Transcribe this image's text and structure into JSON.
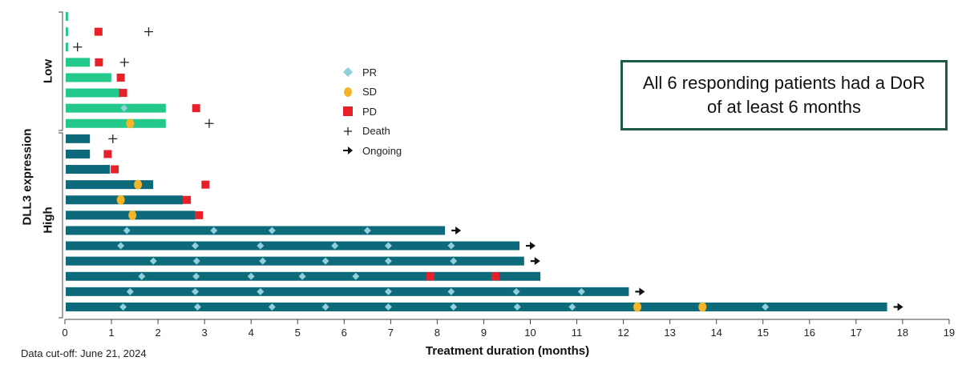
{
  "chart_data": {
    "type": "swimmer",
    "xlabel": "Treatment duration (months)",
    "ylabel": "DLL3 expression",
    "xlim": [
      0,
      19
    ],
    "x_ticks": [
      "0",
      "1",
      "2",
      "3",
      "4",
      "5",
      "6",
      "7",
      "8",
      "9",
      "10",
      "11",
      "12",
      "13",
      "14",
      "15",
      "16",
      "17",
      "18",
      "19"
    ],
    "groups": [
      {
        "label": "Low",
        "color": "#22c98a",
        "patients": [
          {
            "duration": 0.05,
            "PD": [],
            "SD": [],
            "PR": [],
            "death": null,
            "ongoing": false
          },
          {
            "duration": 0.05,
            "PD": [
              0.72
            ],
            "SD": [],
            "PR": [],
            "death": 1.8,
            "ongoing": false
          },
          {
            "duration": 0.05,
            "PD": [],
            "SD": [],
            "PR": [],
            "death": 0.27,
            "ongoing": false
          },
          {
            "duration": 0.52,
            "PD": [
              0.73
            ],
            "SD": [],
            "PR": [],
            "death": 1.28,
            "ongoing": false
          },
          {
            "duration": 0.98,
            "PD": [
              1.2
            ],
            "SD": [],
            "PR": [],
            "death": null,
            "ongoing": false
          },
          {
            "duration": 1.18,
            "PD": [
              1.25
            ],
            "SD": [],
            "PR": [],
            "death": null,
            "ongoing": false
          },
          {
            "duration": 2.15,
            "PD": [
              2.82
            ],
            "SD": [],
            "PR": [
              1.27
            ],
            "death": null,
            "ongoing": false
          },
          {
            "duration": 2.15,
            "PD": [],
            "SD": [
              1.4
            ],
            "PR": [],
            "death": 3.1,
            "ongoing": false
          }
        ]
      },
      {
        "label": "High",
        "color": "#0d6a7a",
        "patients": [
          {
            "duration": 0.52,
            "PD": [],
            "SD": [],
            "PR": [],
            "death": 1.03,
            "ongoing": false
          },
          {
            "duration": 0.52,
            "PD": [
              0.92
            ],
            "SD": [],
            "PR": [],
            "death": null,
            "ongoing": false
          },
          {
            "duration": 0.95,
            "PD": [
              1.07
            ],
            "SD": [],
            "PR": [],
            "death": null,
            "ongoing": false
          },
          {
            "duration": 1.88,
            "PD": [
              3.02
            ],
            "SD": [
              1.57
            ],
            "PR": [],
            "death": null,
            "ongoing": false
          },
          {
            "duration": 2.52,
            "PD": [
              2.62
            ],
            "SD": [
              1.2
            ],
            "PR": [],
            "death": null,
            "ongoing": false
          },
          {
            "duration": 2.78,
            "PD": [
              2.88
            ],
            "SD": [
              1.45
            ],
            "PR": [],
            "death": null,
            "ongoing": false
          },
          {
            "duration": 8.15,
            "PD": [],
            "SD": [],
            "PR": [
              1.33,
              3.2,
              4.45,
              6.5
            ],
            "death": null,
            "ongoing": true
          },
          {
            "duration": 9.75,
            "PD": [],
            "SD": [],
            "PR": [
              1.2,
              2.8,
              4.2,
              5.8,
              6.95,
              8.3
            ],
            "death": null,
            "ongoing": true
          },
          {
            "duration": 9.85,
            "PD": [],
            "SD": [],
            "PR": [
              1.9,
              2.83,
              4.25,
              5.6,
              6.95,
              8.35
            ],
            "death": null,
            "ongoing": true
          },
          {
            "duration": 10.2,
            "PD": [
              7.85,
              9.25
            ],
            "SD": [],
            "PR": [
              1.65,
              2.82,
              4.0,
              5.1,
              6.25
            ],
            "death": null,
            "ongoing": false
          },
          {
            "duration": 12.1,
            "PD": [],
            "SD": [],
            "PR": [
              1.4,
              2.8,
              4.2,
              6.95,
              8.3,
              9.7,
              11.1
            ],
            "death": null,
            "ongoing": true
          },
          {
            "duration": 17.65,
            "PD": [],
            "SD": [
              12.3,
              13.7
            ],
            "PR": [
              1.25,
              2.85,
              4.45,
              5.6,
              6.95,
              8.35,
              9.72,
              10.9,
              15.05
            ],
            "death": null,
            "ongoing": true
          }
        ]
      }
    ],
    "legend": [
      {
        "key": "PR",
        "label": "PR",
        "color": "#8fd0db"
      },
      {
        "key": "SD",
        "label": "SD",
        "color": "#f5b52a"
      },
      {
        "key": "PD",
        "label": "PD",
        "color": "#e8202a"
      },
      {
        "key": "death",
        "label": "Death",
        "color": "#222222"
      },
      {
        "key": "ongoing",
        "label": "Ongoing",
        "color": "#111111"
      }
    ],
    "legend_position": "center-top"
  },
  "callout": "All 6 responding patients had a DoR of at least 6 months",
  "footnote": "Data cut-off: June 21, 2024",
  "colors": {
    "low_bar": "#22c98a",
    "high_bar": "#0d6a7a",
    "pr": "#8fd0db",
    "sd": "#f5b52a",
    "pd": "#e8202a",
    "callout_border": "#1e5a4a"
  }
}
